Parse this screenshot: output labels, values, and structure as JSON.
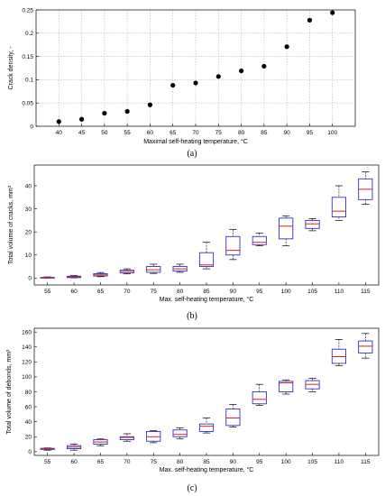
{
  "figures": [
    {
      "caption": "(a)",
      "chart_data": {
        "type": "scatter",
        "title": "",
        "xlabel": "Maximal self-heating temperature, °C",
        "ylabel": "Crack density, -",
        "xlim": [
          35,
          105
        ],
        "ylim": [
          0,
          0.25
        ],
        "grid": true,
        "xticks": [
          40,
          45,
          50,
          55,
          60,
          65,
          70,
          75,
          80,
          85,
          90,
          95,
          100
        ],
        "yticks": [
          0,
          0.05,
          0.1,
          0.15,
          0.2,
          0.25
        ],
        "ytick_labels": [
          "0",
          "0.05",
          "0.1",
          "0.15",
          "0.2",
          "0.25"
        ],
        "marker_color": "#000000",
        "points": [
          {
            "x": 40,
            "y": 0.01
          },
          {
            "x": 45,
            "y": 0.015
          },
          {
            "x": 50,
            "y": 0.028
          },
          {
            "x": 55,
            "y": 0.032
          },
          {
            "x": 60,
            "y": 0.046
          },
          {
            "x": 65,
            "y": 0.088
          },
          {
            "x": 70,
            "y": 0.093
          },
          {
            "x": 75,
            "y": 0.107
          },
          {
            "x": 80,
            "y": 0.119
          },
          {
            "x": 85,
            "y": 0.129
          },
          {
            "x": 90,
            "y": 0.171
          },
          {
            "x": 95,
            "y": 0.228
          },
          {
            "x": 100,
            "y": 0.244
          }
        ]
      }
    },
    {
      "caption": "(b)",
      "chart_data": {
        "type": "box",
        "title": "",
        "xlabel": "Max. self-heating temperature, °C",
        "ylabel": "Total volume of cracks, mm³",
        "ylim": [
          -3,
          49
        ],
        "yticks": [
          0,
          10,
          20,
          30,
          40
        ],
        "grid": false,
        "box_color": "#3030c8",
        "median_color": "#e02020",
        "categories": [
          "55",
          "60",
          "65",
          "70",
          "75",
          "80",
          "85",
          "90",
          "95",
          "100",
          "105",
          "110",
          "115"
        ],
        "boxes": [
          {
            "min": 0,
            "q1": 0,
            "median": 0.1,
            "q3": 0.3,
            "max": 0.5
          },
          {
            "min": 0.1,
            "q1": 0.2,
            "median": 0.5,
            "q3": 0.8,
            "max": 1.1
          },
          {
            "min": 0.6,
            "q1": 0.9,
            "median": 1.4,
            "q3": 1.9,
            "max": 2.4
          },
          {
            "min": 1.8,
            "q1": 2.2,
            "median": 2.9,
            "q3": 3.4,
            "max": 4
          },
          {
            "min": 2,
            "q1": 2.5,
            "median": 3.6,
            "q3": 5,
            "max": 6
          },
          {
            "min": 2.5,
            "q1": 3,
            "median": 4,
            "q3": 5,
            "max": 6
          },
          {
            "min": 4,
            "q1": 5,
            "median": 5.7,
            "q3": 11,
            "max": 15.5
          },
          {
            "min": 8,
            "q1": 10,
            "median": 12,
            "q3": 18,
            "max": 21
          },
          {
            "min": 14,
            "q1": 14.5,
            "median": 15.5,
            "q3": 18,
            "max": 19.5
          },
          {
            "min": 14,
            "q1": 17,
            "median": 22.5,
            "q3": 26,
            "max": 27
          },
          {
            "min": 20.5,
            "q1": 21.5,
            "median": 23.5,
            "q3": 25,
            "max": 25.8
          },
          {
            "min": 25,
            "q1": 26.5,
            "median": 29,
            "q3": 35,
            "max": 40
          },
          {
            "min": 32,
            "q1": 34,
            "median": 38.5,
            "q3": 43,
            "max": 46
          }
        ]
      }
    },
    {
      "caption": "(c)",
      "chart_data": {
        "type": "box",
        "title": "",
        "xlabel": "Max. self-heating temperature, °C",
        "ylabel": "Total volume of debonds, mm³",
        "ylim": [
          -5,
          165
        ],
        "yticks": [
          0,
          20,
          40,
          60,
          80,
          100,
          120,
          140,
          160
        ],
        "grid": false,
        "box_color": "#3030c8",
        "median_color": "#e02020",
        "categories": [
          "55",
          "60",
          "65",
          "70",
          "75",
          "80",
          "85",
          "90",
          "95",
          "100",
          "105",
          "110",
          "115"
        ],
        "boxes": [
          {
            "min": 2,
            "q1": 3,
            "median": 4,
            "q3": 4.5,
            "max": 5
          },
          {
            "min": 2,
            "q1": 4,
            "median": 6,
            "q3": 8,
            "max": 10
          },
          {
            "min": 8,
            "q1": 10,
            "median": 13,
            "q3": 16,
            "max": 17
          },
          {
            "min": 14,
            "q1": 16,
            "median": 19,
            "q3": 20,
            "max": 24
          },
          {
            "min": 12,
            "q1": 14,
            "median": 20,
            "q3": 27,
            "max": 28
          },
          {
            "min": 17,
            "q1": 20,
            "median": 23,
            "q3": 29,
            "max": 32
          },
          {
            "min": 25,
            "q1": 27,
            "median": 34,
            "q3": 37,
            "max": 45
          },
          {
            "min": 33,
            "q1": 35,
            "median": 45,
            "q3": 57,
            "max": 63
          },
          {
            "min": 62,
            "q1": 64,
            "median": 70,
            "q3": 80,
            "max": 90
          },
          {
            "min": 77,
            "q1": 80,
            "median": 92,
            "q3": 94,
            "max": 96
          },
          {
            "min": 80,
            "q1": 84,
            "median": 90,
            "q3": 95,
            "max": 98
          },
          {
            "min": 115,
            "q1": 118,
            "median": 127,
            "q3": 137,
            "max": 150
          },
          {
            "min": 125,
            "q1": 132,
            "median": 141,
            "q3": 148,
            "max": 158
          }
        ]
      }
    }
  ]
}
